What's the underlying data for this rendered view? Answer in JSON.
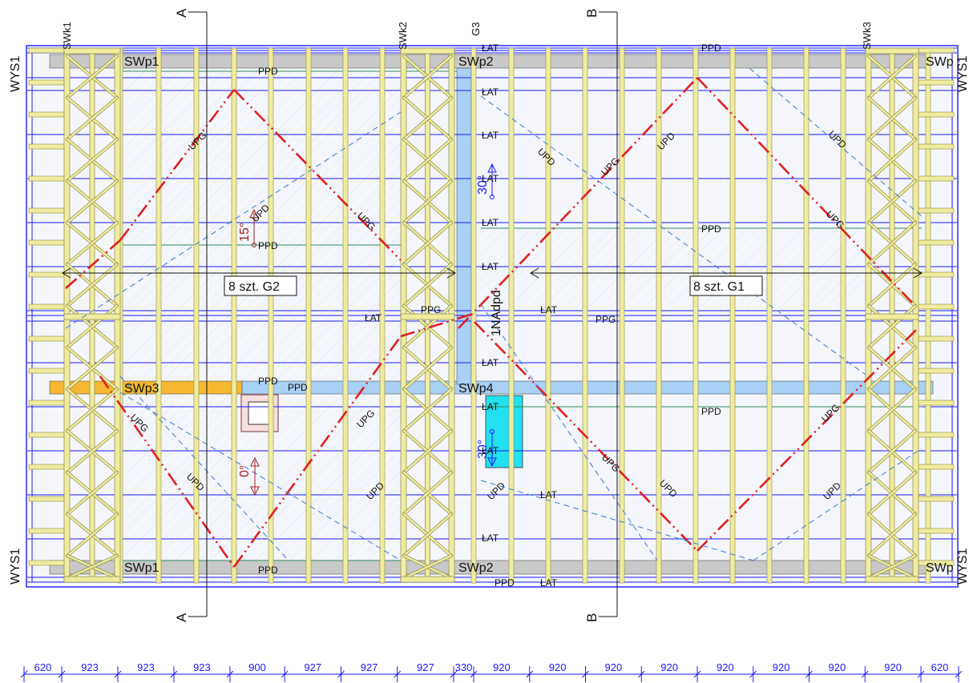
{
  "colors": {
    "background": "#ffffff",
    "outline_blue": "#1a1aff",
    "timber": "#f0ec9e",
    "timber_edge": "#8a8a4a",
    "wall_plate_gray": "#c8c8c8",
    "header_orange": "#f5b830",
    "light_blue": "#a9d0f5",
    "cyan_opening": "#22e0f0",
    "diagonal_red": "#e02020",
    "dashed_blue": "#3d7ad6",
    "angle_red": "#a02020",
    "green_line": "#2e8b57"
  },
  "drawing": {
    "side_labels": [
      {
        "id": "wys-left-top",
        "text": "WYS1"
      },
      {
        "id": "wys-left-bottom",
        "text": "WYS1"
      },
      {
        "id": "wys-right-top",
        "text": "WYS1"
      },
      {
        "id": "wys-right-bottom",
        "text": "WYS1"
      }
    ],
    "top_labels": {
      "swk1": "SWk1",
      "swk2": "SWk2",
      "g3": "G3",
      "swk3": "SWk3",
      "lat_top": "ŁAT",
      "ppd_top": "PPD"
    },
    "sections": {
      "a": "A",
      "b": "B"
    },
    "wall_plates": {
      "swp1_top": "SWp1",
      "swp2_top": "SWp2",
      "swp_right_top": "SWp",
      "swp3": "SWp3",
      "swp4": "SWp4",
      "swp1_bottom": "SWp1",
      "swp2_bottom": "SWp2",
      "swp_right_bottom": "SWp"
    },
    "girder_labels": {
      "left": "8 szt. G2",
      "right": "8 szt. G1"
    },
    "vertical_labels": {
      "nad_pd": "1NAdpd"
    },
    "angles": {
      "a15": "15°",
      "a30_top": "30°",
      "a0": "0°",
      "a30_bottom": "30°"
    },
    "bracing_labels": {
      "upg": "UPG",
      "upd": "UPD",
      "ppd": "PPD",
      "ppg": "PPG",
      "lat": "ŁAT"
    }
  },
  "dimensions": [
    "620",
    "923",
    "923",
    "923",
    "900",
    "927",
    "927",
    "927",
    "330",
    "920",
    "920",
    "920",
    "920",
    "920",
    "920",
    "920",
    "920",
    "620"
  ]
}
